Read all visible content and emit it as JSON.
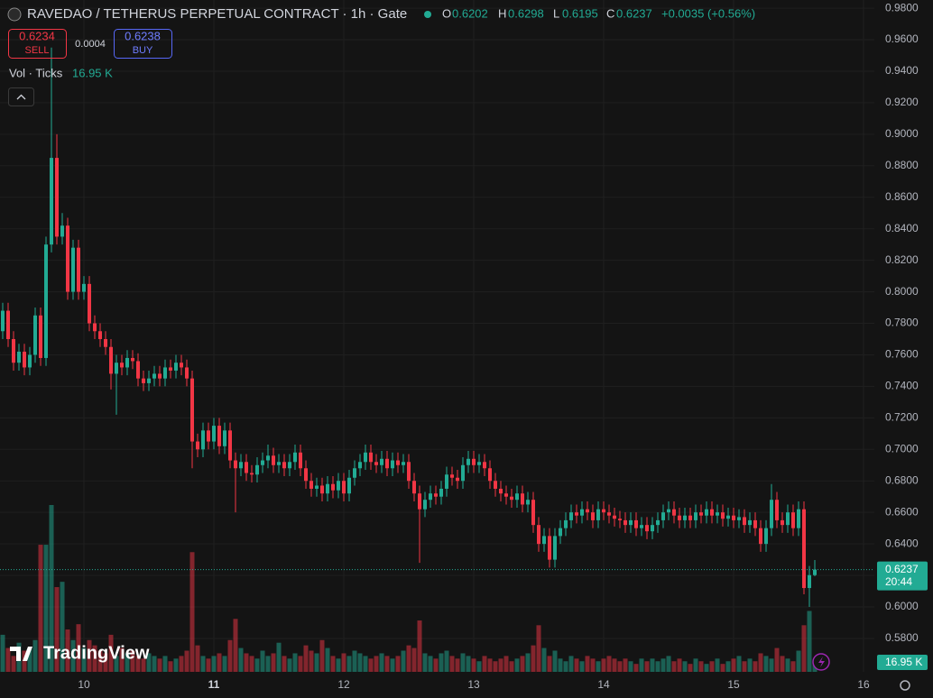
{
  "toolbar": {
    "title": "RAVEDAO / TETHERUS PERPETUAL CONTRACT · 1h · Gate",
    "o_label": "O",
    "open": "0.6202",
    "h_label": "H",
    "high": "0.6298",
    "l_label": "L",
    "low": "0.6195",
    "c_label": "C",
    "close": "0.6237",
    "change": "+0.0035 (+0.56%)",
    "sell_price": "0.6234",
    "sell": "SELL",
    "spread": "0.0004",
    "buy_price": "0.6238",
    "buy": "BUY",
    "volume_legend": "Vol · Ticks",
    "logo": "TradingView",
    "countdown": "20:44"
  },
  "chart_data": {
    "type": "candlestick",
    "x": [
      9,
      10,
      11,
      12,
      13,
      14,
      15,
      16,
      17,
      18,
      19,
      20,
      21,
      22,
      23,
      24,
      25,
      26,
      27,
      28,
      29,
      30,
      31,
      32,
      33,
      34,
      35,
      36,
      37,
      38,
      39,
      40,
      41,
      42,
      43,
      44,
      45,
      46,
      47,
      48,
      49,
      50,
      51,
      52,
      53,
      54,
      55,
      56,
      57,
      58,
      59,
      60,
      61,
      62,
      63,
      64,
      65,
      66,
      67,
      68,
      69,
      70,
      71,
      72,
      73,
      74,
      75,
      76,
      77,
      78,
      79,
      80,
      81,
      82,
      83,
      84,
      85,
      86,
      87,
      88,
      89,
      90,
      91,
      92,
      93,
      94,
      95,
      96,
      97,
      98,
      99,
      100,
      101,
      102,
      103,
      104,
      105,
      106,
      107,
      108,
      109,
      110,
      111,
      112,
      113,
      114,
      115,
      116,
      117,
      118,
      119,
      120,
      121,
      122,
      123,
      124,
      125,
      126,
      127,
      128,
      129,
      130,
      131,
      132,
      133,
      134,
      135,
      136,
      137,
      138,
      139,
      140,
      141,
      142,
      143,
      144,
      145,
      146,
      147,
      148,
      149,
      150,
      151,
      152,
      153,
      154,
      155,
      156,
      157,
      158,
      159
    ],
    "open": [
      0.775,
      0.788,
      0.77,
      0.755,
      0.762,
      0.752,
      0.76,
      0.785,
      0.758,
      0.83,
      0.885,
      0.835,
      0.842,
      0.8,
      0.828,
      0.8,
      0.805,
      0.78,
      0.775,
      0.77,
      0.765,
      0.748,
      0.755,
      0.752,
      0.758,
      0.756,
      0.745,
      0.742,
      0.745,
      0.748,
      0.745,
      0.752,
      0.75,
      0.755,
      0.752,
      0.745,
      0.705,
      0.7,
      0.712,
      0.705,
      0.715,
      0.702,
      0.712,
      0.693,
      0.688,
      0.692,
      0.685,
      0.684,
      0.69,
      0.693,
      0.696,
      0.69,
      0.692,
      0.688,
      0.692,
      0.698,
      0.688,
      0.68,
      0.675,
      0.677,
      0.672,
      0.678,
      0.674,
      0.68,
      0.672,
      0.682,
      0.688,
      0.692,
      0.698,
      0.692,
      0.69,
      0.694,
      0.688,
      0.693,
      0.69,
      0.692,
      0.68,
      0.672,
      0.662,
      0.668,
      0.672,
      0.67,
      0.675,
      0.684,
      0.682,
      0.68,
      0.69,
      0.694,
      0.69,
      0.692,
      0.688,
      0.68,
      0.675,
      0.672,
      0.67,
      0.668,
      0.672,
      0.665,
      0.668,
      0.652,
      0.64,
      0.645,
      0.63,
      0.645,
      0.65,
      0.655,
      0.66,
      0.658,
      0.662,
      0.66,
      0.655,
      0.662,
      0.66,
      0.658,
      0.656,
      0.655,
      0.652,
      0.655,
      0.65,
      0.652,
      0.648,
      0.652,
      0.655,
      0.66,
      0.662,
      0.658,
      0.655,
      0.658,
      0.655,
      0.66,
      0.658,
      0.662,
      0.658,
      0.66,
      0.656,
      0.658,
      0.655,
      0.657,
      0.652,
      0.655,
      0.65,
      0.64,
      0.65,
      0.668,
      0.655,
      0.652,
      0.66,
      0.65,
      0.662,
      0.612,
      0.6202
    ],
    "high": [
      0.793,
      0.793,
      0.775,
      0.767,
      0.767,
      0.765,
      0.79,
      0.79,
      0.835,
      0.955,
      0.9,
      0.85,
      0.847,
      0.833,
      0.833,
      0.81,
      0.81,
      0.785,
      0.78,
      0.775,
      0.77,
      0.76,
      0.76,
      0.763,
      0.763,
      0.761,
      0.75,
      0.75,
      0.753,
      0.753,
      0.757,
      0.757,
      0.76,
      0.76,
      0.757,
      0.75,
      0.71,
      0.717,
      0.717,
      0.72,
      0.72,
      0.717,
      0.717,
      0.698,
      0.697,
      0.697,
      0.69,
      0.695,
      0.698,
      0.703,
      0.701,
      0.697,
      0.697,
      0.697,
      0.703,
      0.703,
      0.693,
      0.685,
      0.682,
      0.682,
      0.683,
      0.683,
      0.685,
      0.685,
      0.687,
      0.693,
      0.697,
      0.703,
      0.703,
      0.697,
      0.699,
      0.699,
      0.698,
      0.698,
      0.697,
      0.697,
      0.685,
      0.677,
      0.673,
      0.677,
      0.677,
      0.68,
      0.689,
      0.689,
      0.687,
      0.695,
      0.699,
      0.699,
      0.697,
      0.697,
      0.693,
      0.685,
      0.68,
      0.677,
      0.675,
      0.677,
      0.677,
      0.673,
      0.673,
      0.657,
      0.65,
      0.65,
      0.65,
      0.655,
      0.66,
      0.665,
      0.665,
      0.667,
      0.667,
      0.665,
      0.667,
      0.667,
      0.665,
      0.663,
      0.661,
      0.66,
      0.66,
      0.66,
      0.657,
      0.657,
      0.657,
      0.66,
      0.665,
      0.667,
      0.667,
      0.663,
      0.663,
      0.663,
      0.665,
      0.665,
      0.667,
      0.667,
      0.665,
      0.665,
      0.663,
      0.663,
      0.662,
      0.662,
      0.66,
      0.66,
      0.655,
      0.655,
      0.678,
      0.673,
      0.66,
      0.665,
      0.665,
      0.667,
      0.667,
      0.626,
      0.6298
    ],
    "low": [
      0.77,
      0.765,
      0.75,
      0.75,
      0.747,
      0.747,
      0.755,
      0.753,
      0.753,
      0.825,
      0.83,
      0.83,
      0.795,
      0.795,
      0.795,
      0.795,
      0.775,
      0.77,
      0.765,
      0.76,
      0.738,
      0.722,
      0.747,
      0.747,
      0.751,
      0.74,
      0.737,
      0.737,
      0.74,
      0.74,
      0.74,
      0.745,
      0.745,
      0.747,
      0.74,
      0.688,
      0.695,
      0.695,
      0.7,
      0.7,
      0.697,
      0.697,
      0.688,
      0.66,
      0.683,
      0.68,
      0.679,
      0.679,
      0.685,
      0.688,
      0.685,
      0.685,
      0.683,
      0.683,
      0.687,
      0.683,
      0.675,
      0.67,
      0.67,
      0.667,
      0.667,
      0.669,
      0.669,
      0.667,
      0.667,
      0.677,
      0.683,
      0.687,
      0.687,
      0.685,
      0.685,
      0.683,
      0.683,
      0.685,
      0.685,
      0.675,
      0.667,
      0.628,
      0.657,
      0.663,
      0.665,
      0.665,
      0.67,
      0.677,
      0.675,
      0.675,
      0.685,
      0.685,
      0.685,
      0.683,
      0.675,
      0.67,
      0.667,
      0.665,
      0.663,
      0.663,
      0.66,
      0.66,
      0.647,
      0.635,
      0.635,
      0.625,
      0.625,
      0.64,
      0.645,
      0.65,
      0.653,
      0.653,
      0.655,
      0.65,
      0.65,
      0.655,
      0.653,
      0.651,
      0.65,
      0.647,
      0.647,
      0.645,
      0.645,
      0.643,
      0.643,
      0.647,
      0.65,
      0.655,
      0.653,
      0.65,
      0.65,
      0.65,
      0.65,
      0.653,
      0.653,
      0.653,
      0.653,
      0.651,
      0.651,
      0.65,
      0.65,
      0.647,
      0.647,
      0.645,
      0.635,
      0.635,
      0.645,
      0.65,
      0.647,
      0.647,
      0.645,
      0.645,
      0.608,
      0.6,
      0.6195
    ],
    "close": [
      0.788,
      0.77,
      0.755,
      0.762,
      0.752,
      0.76,
      0.785,
      0.758,
      0.83,
      0.885,
      0.835,
      0.842,
      0.8,
      0.828,
      0.8,
      0.805,
      0.78,
      0.775,
      0.77,
      0.765,
      0.748,
      0.755,
      0.752,
      0.758,
      0.756,
      0.745,
      0.742,
      0.745,
      0.748,
      0.745,
      0.752,
      0.75,
      0.755,
      0.752,
      0.745,
      0.705,
      0.7,
      0.712,
      0.705,
      0.715,
      0.702,
      0.712,
      0.693,
      0.688,
      0.692,
      0.685,
      0.684,
      0.69,
      0.693,
      0.696,
      0.69,
      0.692,
      0.688,
      0.692,
      0.698,
      0.688,
      0.68,
      0.675,
      0.677,
      0.672,
      0.678,
      0.674,
      0.68,
      0.672,
      0.682,
      0.688,
      0.692,
      0.698,
      0.692,
      0.69,
      0.694,
      0.688,
      0.693,
      0.69,
      0.692,
      0.68,
      0.672,
      0.662,
      0.668,
      0.672,
      0.67,
      0.675,
      0.684,
      0.682,
      0.68,
      0.69,
      0.694,
      0.69,
      0.692,
      0.688,
      0.68,
      0.675,
      0.672,
      0.67,
      0.668,
      0.672,
      0.665,
      0.668,
      0.652,
      0.64,
      0.645,
      0.63,
      0.645,
      0.65,
      0.655,
      0.66,
      0.658,
      0.662,
      0.66,
      0.655,
      0.662,
      0.66,
      0.658,
      0.656,
      0.655,
      0.652,
      0.655,
      0.65,
      0.652,
      0.648,
      0.652,
      0.655,
      0.66,
      0.662,
      0.658,
      0.655,
      0.658,
      0.655,
      0.66,
      0.658,
      0.662,
      0.658,
      0.66,
      0.656,
      0.658,
      0.655,
      0.657,
      0.652,
      0.655,
      0.65,
      0.64,
      0.65,
      0.668,
      0.655,
      0.652,
      0.66,
      0.65,
      0.662,
      0.612,
      0.6202,
      0.6237
    ],
    "volume": [
      70,
      45,
      30,
      55,
      40,
      45,
      60,
      240,
      240,
      315,
      160,
      170,
      80,
      60,
      90,
      45,
      60,
      50,
      40,
      35,
      70,
      30,
      45,
      35,
      40,
      30,
      25,
      35,
      30,
      25,
      30,
      20,
      25,
      30,
      40,
      226,
      50,
      30,
      25,
      30,
      35,
      30,
      60,
      100,
      45,
      35,
      30,
      25,
      40,
      30,
      35,
      55,
      30,
      25,
      35,
      30,
      50,
      40,
      35,
      60,
      45,
      30,
      25,
      35,
      30,
      40,
      35,
      30,
      25,
      30,
      35,
      30,
      25,
      30,
      40,
      50,
      45,
      97,
      35,
      30,
      25,
      35,
      40,
      30,
      25,
      35,
      30,
      25,
      20,
      30,
      25,
      20,
      25,
      30,
      20,
      25,
      30,
      35,
      50,
      88,
      45,
      30,
      40,
      25,
      20,
      30,
      25,
      20,
      30,
      25,
      20,
      25,
      30,
      25,
      20,
      25,
      20,
      15,
      25,
      20,
      25,
      20,
      25,
      30,
      20,
      25,
      20,
      15,
      25,
      20,
      15,
      20,
      25,
      15,
      20,
      25,
      30,
      20,
      25,
      20,
      35,
      30,
      25,
      45,
      30,
      25,
      20,
      40,
      88,
      115,
      16.95
    ],
    "volume_label": "16.95 K",
    "last_price": {
      "value": 0.6237,
      "label": "0.6237"
    },
    "up_color": "#22ab94",
    "down_color": "#f23645",
    "xlim": [
      8.5,
      170
    ],
    "ylim": [
      0.5588,
      0.9852
    ],
    "xticks": [
      {
        "value": 24,
        "label": "10"
      },
      {
        "value": 48,
        "label": "11"
      },
      {
        "value": 72,
        "label": "12"
      },
      {
        "value": 96,
        "label": "13"
      },
      {
        "value": 120,
        "label": "14"
      },
      {
        "value": 144,
        "label": "15"
      },
      {
        "value": 168,
        "label": "16"
      }
    ],
    "yticks": [
      {
        "value": 0.98,
        "label": "0.9800"
      },
      {
        "value": 0.96,
        "label": "0.9600"
      },
      {
        "value": 0.94,
        "label": "0.9400"
      },
      {
        "value": 0.92,
        "label": "0.9200"
      },
      {
        "value": 0.9,
        "label": "0.9000"
      },
      {
        "value": 0.88,
        "label": "0.8800"
      },
      {
        "value": 0.86,
        "label": "0.8600"
      },
      {
        "value": 0.84,
        "label": "0.8400"
      },
      {
        "value": 0.82,
        "label": "0.8200"
      },
      {
        "value": 0.8,
        "label": "0.8000"
      },
      {
        "value": 0.78,
        "label": "0.7800"
      },
      {
        "value": 0.76,
        "label": "0.7600"
      },
      {
        "value": 0.74,
        "label": "0.7400"
      },
      {
        "value": 0.72,
        "label": "0.7200"
      },
      {
        "value": 0.7,
        "label": "0.7000"
      },
      {
        "value": 0.68,
        "label": "0.6800"
      },
      {
        "value": 0.66,
        "label": "0.6600"
      },
      {
        "value": 0.64,
        "label": "0.6400"
      },
      {
        "value": 0.62,
        "label": "0.6200"
      },
      {
        "value": 0.6,
        "label": "0.6000"
      },
      {
        "value": 0.58,
        "label": "0.5800"
      }
    ],
    "grid": true
  }
}
